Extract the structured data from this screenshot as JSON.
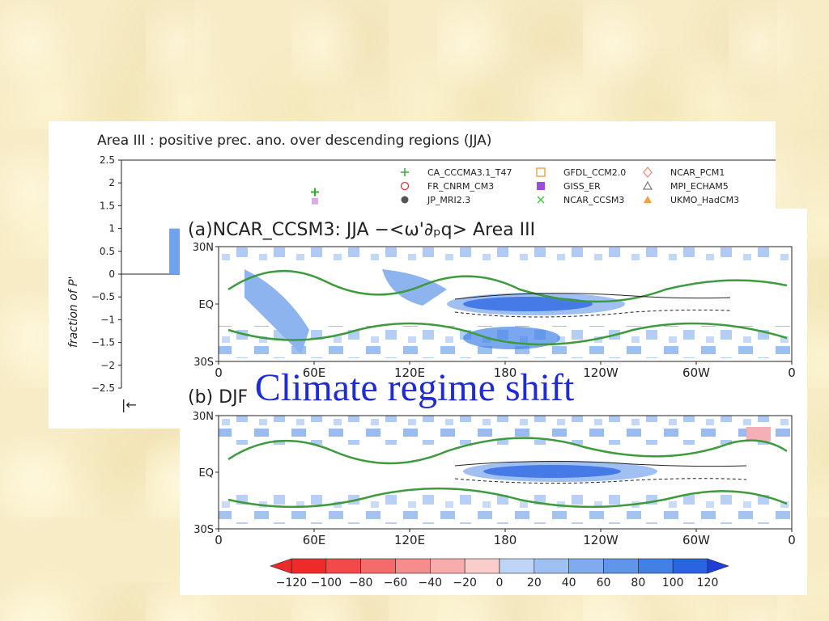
{
  "overlay_title": "Climate regime shift",
  "colors": {
    "background": "#f7ecc6",
    "blue_shading": "#8db4ee",
    "deep_blue": "#1f52e0",
    "pink_shading": "#f4b0b6",
    "green_contour": "#3d9a3d",
    "title_blue": "#1f2bd6"
  },
  "chart_data": [
    {
      "type": "bar",
      "title": "Area III : positive prec. ano. over descending regions (JJA)",
      "ylabel": "fraction of P'",
      "ylim": [
        -2.5,
        2.5
      ],
      "yticks": [
        "2.5",
        "2",
        "1.5",
        "1",
        "0.5",
        "0",
        "−0.5",
        "−1",
        "−1.5",
        "−2",
        "−2.5"
      ],
      "visible_bar": {
        "value": 1.0
      },
      "markers": [
        {
          "symbol": "+",
          "value": 1.8,
          "color": "#33aa33"
        },
        {
          "symbol": "square",
          "value": 1.6,
          "color": "#cc88dd"
        }
      ],
      "legend": [
        {
          "label": "CA_CCCMA3.1_T47",
          "symbol": "+",
          "color": "#33aa33"
        },
        {
          "label": "GFDL_CCM2.0",
          "symbol": "square-open",
          "color": "#e89a3a"
        },
        {
          "label": "NCAR_PCM1",
          "symbol": "diamond-open",
          "color": "#e8847a"
        },
        {
          "label": "FR_CNRM_CM3",
          "symbol": "circle-open",
          "color": "#e03030"
        },
        {
          "label": "GISS_ER",
          "symbol": "square-filled",
          "color": "#9a4de0"
        },
        {
          "label": "MPI_ECHAM5",
          "symbol": "triangle-open",
          "color": "#777777"
        },
        {
          "label": "JP_MRI2.3",
          "symbol": "circle-filled",
          "color": "#555555"
        },
        {
          "label": "NCAR_CCSM3",
          "symbol": "x",
          "color": "#44cc44"
        },
        {
          "label": "UKMO_HadCM3",
          "symbol": "triangle-filled",
          "color": "#f0a040"
        }
      ],
      "legend_position": "top-right",
      "bottom_text": "|←"
    },
    {
      "type": "heatmap",
      "panels": [
        {
          "title": "(a)NCAR_CCSM3: JJA  −<ω'∂ₚq>  Area III",
          "id": "a"
        },
        {
          "title": "(b)  DJF",
          "id": "b"
        }
      ],
      "x_ticks": [
        "0",
        "60E",
        "120E",
        "180",
        "120W",
        "60W",
        "0"
      ],
      "y_ticks": [
        "30N",
        "EQ",
        "30S"
      ],
      "colorbar": {
        "values": [
          "−120",
          "−100",
          "−80",
          "−60",
          "−40",
          "−20",
          "0",
          "20",
          "40",
          "60",
          "80",
          "100",
          "120"
        ],
        "colors": [
          "#ee2a2a",
          "#f24a4a",
          "#f56b6b",
          "#f78c8c",
          "#f9acac",
          "#fbcccc",
          "#bfd5f7",
          "#9fc0f3",
          "#80abee",
          "#6096ea",
          "#4181e5",
          "#2a64e0"
        ]
      }
    }
  ]
}
